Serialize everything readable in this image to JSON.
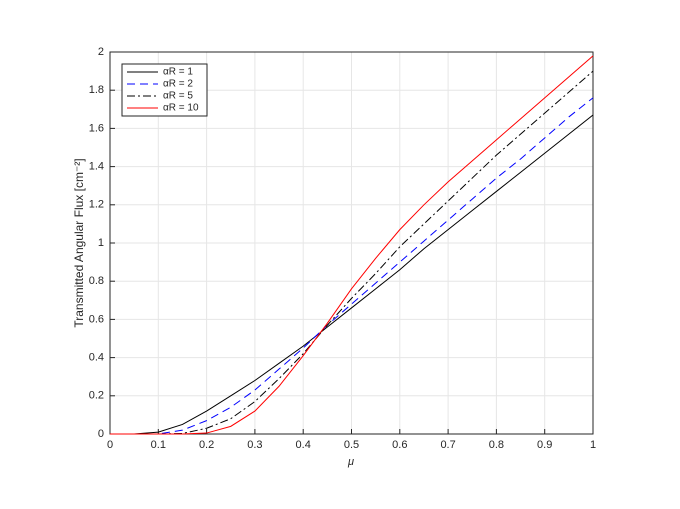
{
  "chart_data": {
    "type": "line",
    "x_label": "μ",
    "y_label": "Transmitted Angular Flux [cm⁻²]",
    "x": [
      0,
      0.05,
      0.1,
      0.15,
      0.2,
      0.25,
      0.3,
      0.35,
      0.4,
      0.45,
      0.5,
      0.55,
      0.6,
      0.65,
      0.7,
      0.75,
      0.8,
      0.85,
      0.9,
      0.95,
      1
    ],
    "series": [
      {
        "name": "αR = 1",
        "color": "#000000",
        "line_style": "solid",
        "values": [
          0,
          0,
          0.01,
          0.05,
          0.12,
          0.2,
          0.28,
          0.37,
          0.46,
          0.56,
          0.66,
          0.76,
          0.86,
          0.97,
          1.07,
          1.17,
          1.27,
          1.37,
          1.47,
          1.57,
          1.67
        ]
      },
      {
        "name": "αR = 2",
        "color": "#0000ff",
        "line_style": "dashed",
        "values": [
          0,
          0,
          0,
          0.02,
          0.07,
          0.14,
          0.23,
          0.34,
          0.45,
          0.57,
          0.68,
          0.79,
          0.9,
          1.01,
          1.12,
          1.23,
          1.34,
          1.44,
          1.55,
          1.66,
          1.76
        ]
      },
      {
        "name": "αR = 5",
        "color": "#000000",
        "line_style": "dashdot",
        "values": [
          0,
          0,
          0,
          0.003,
          0.03,
          0.08,
          0.17,
          0.29,
          0.42,
          0.57,
          0.71,
          0.84,
          0.98,
          1.1,
          1.22,
          1.34,
          1.46,
          1.57,
          1.68,
          1.79,
          1.9
        ]
      },
      {
        "name": "αR = 10",
        "color": "#ff0000",
        "line_style": "solid",
        "values": [
          0,
          0,
          0,
          0,
          0.005,
          0.04,
          0.12,
          0.25,
          0.41,
          0.58,
          0.76,
          0.92,
          1.07,
          1.2,
          1.32,
          1.43,
          1.54,
          1.65,
          1.76,
          1.87,
          1.98
        ]
      }
    ],
    "xlim": [
      0,
      1
    ],
    "xticks": [
      0,
      0.1,
      0.2,
      0.3,
      0.4,
      0.5,
      0.6,
      0.7,
      0.8,
      0.9,
      1
    ],
    "ylim": [
      0,
      2
    ],
    "yticks": [
      0,
      0.2,
      0.4,
      0.6,
      0.8,
      1,
      1.2,
      1.4,
      1.6,
      1.8,
      2
    ],
    "grid": true,
    "legend_position": "upper-left"
  }
}
